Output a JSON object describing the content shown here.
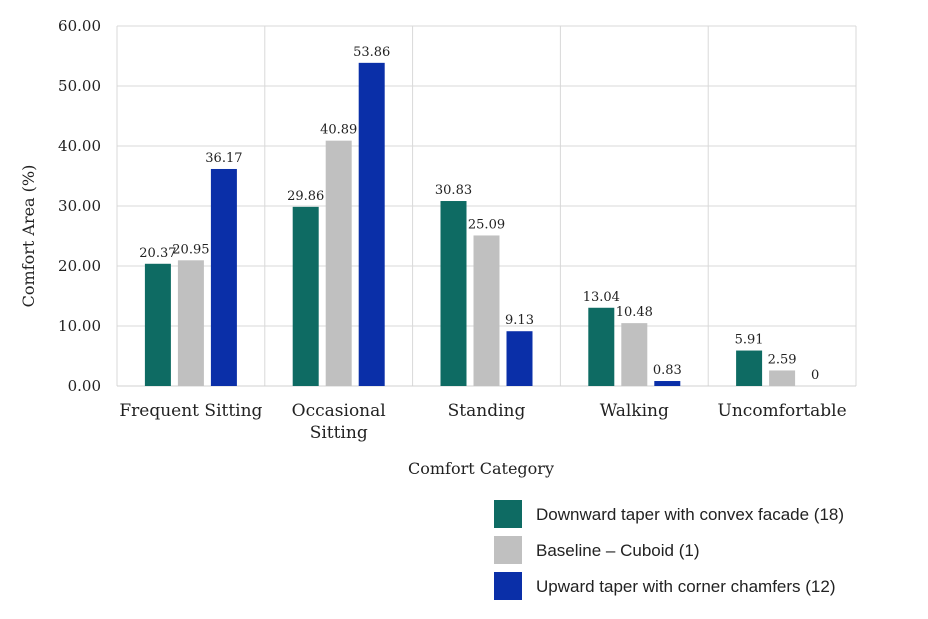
{
  "chart_data": {
    "type": "bar",
    "title": "",
    "xlabel": "Comfort Category",
    "ylabel": "Comfort Area (%)",
    "ylim": [
      0,
      60
    ],
    "yticks": [
      "0.00",
      "10.00",
      "20.00",
      "30.00",
      "40.00",
      "50.00",
      "60.00"
    ],
    "categories": [
      [
        "Frequent Sitting"
      ],
      [
        "Occasional",
        "Sitting"
      ],
      [
        "Standing"
      ],
      [
        "Walking"
      ],
      [
        "Uncomfortable"
      ]
    ],
    "series": [
      {
        "name": "Downward taper with convex facade (18)",
        "color": "#0e6b63",
        "values": [
          20.37,
          29.86,
          30.83,
          13.04,
          5.91
        ],
        "labels": [
          "20.37",
          "29.86",
          "30.83",
          "13.04",
          "5.91"
        ]
      },
      {
        "name": "Baseline – Cuboid (1)",
        "color": "#c0c0c0",
        "values": [
          20.95,
          40.89,
          25.09,
          10.48,
          2.59
        ],
        "labels": [
          "20.95",
          "40.89",
          "25.09",
          "10.48",
          "2.59"
        ]
      },
      {
        "name": "Upward taper with corner chamfers (12)",
        "color": "#0a2fa8",
        "values": [
          36.17,
          53.86,
          9.13,
          0.83,
          0
        ],
        "labels": [
          "36.17",
          "53.86",
          "9.13",
          "0.83",
          "0"
        ]
      }
    ],
    "grid": true,
    "legend_position": "bottom-right"
  }
}
